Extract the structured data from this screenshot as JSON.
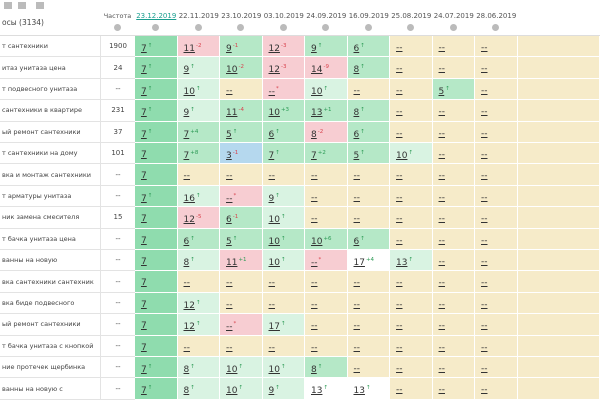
{
  "header": {
    "query_title": "осы (3134)",
    "freq_title": "Частота",
    "dates": [
      "23.12.2019",
      "22.11.2019",
      "23.10.2019",
      "03.10.2019",
      "24.09.2019",
      "16.09.2019",
      "25.08.2019",
      "24.07.2019",
      "28.06.2019"
    ]
  },
  "rows": [
    {
      "query": "т сантехники",
      "freq": 1900,
      "cells": [
        {
          "pos": 7,
          "delta": "↑",
          "tone": "d"
        },
        {
          "pos": 11,
          "delta": "-2",
          "tone": "p"
        },
        {
          "pos": 9,
          "delta": "-1",
          "tone": "g"
        },
        {
          "pos": 12,
          "delta": "-3",
          "tone": "p"
        },
        {
          "pos": 9,
          "delta": "↑",
          "tone": "g"
        },
        {
          "pos": 6,
          "delta": "↑",
          "tone": "g"
        },
        {
          "pos": "--",
          "tone": "e"
        },
        {
          "pos": "--",
          "tone": "e"
        },
        {
          "pos": "--",
          "tone": "e"
        }
      ]
    },
    {
      "query": "итаз унитаза цена",
      "freq": 24,
      "cells": [
        {
          "pos": 7,
          "delta": "↑",
          "tone": "d"
        },
        {
          "pos": 9,
          "delta": "↑",
          "tone": "l"
        },
        {
          "pos": 10,
          "delta": "-2",
          "tone": "g"
        },
        {
          "pos": 12,
          "delta": "-3",
          "tone": "p"
        },
        {
          "pos": 14,
          "delta": "-9",
          "tone": "p"
        },
        {
          "pos": 8,
          "delta": "↑",
          "tone": "g"
        },
        {
          "pos": "--",
          "tone": "e"
        },
        {
          "pos": "--",
          "tone": "e"
        },
        {
          "pos": "--",
          "tone": "e"
        }
      ]
    },
    {
      "query": "т подвесного унитаза",
      "freq": "--",
      "cells": [
        {
          "pos": 7,
          "delta": "↑",
          "tone": "d"
        },
        {
          "pos": 10,
          "delta": "↑",
          "tone": "l"
        },
        {
          "pos": "--",
          "tone": "e"
        },
        {
          "pos": "--",
          "delta": "*",
          "tone": "p"
        },
        {
          "pos": 10,
          "delta": "↑",
          "tone": "l"
        },
        {
          "pos": "--",
          "tone": "e"
        },
        {
          "pos": "--",
          "tone": "e"
        },
        {
          "pos": 5,
          "delta": "↑",
          "tone": "g"
        },
        {
          "pos": "--",
          "tone": "e"
        }
      ]
    },
    {
      "query": "сантехники в квартире",
      "freq": 231,
      "cells": [
        {
          "pos": 7,
          "delta": "↑",
          "tone": "d"
        },
        {
          "pos": 9,
          "delta": "↑",
          "tone": "l"
        },
        {
          "pos": 11,
          "delta": "-4",
          "tone": "g"
        },
        {
          "pos": 10,
          "delta": "+3",
          "tone": "g"
        },
        {
          "pos": 13,
          "delta": "+1",
          "tone": "g"
        },
        {
          "pos": 8,
          "delta": "↑",
          "tone": "g"
        },
        {
          "pos": "--",
          "tone": "e"
        },
        {
          "pos": "--",
          "tone": "e"
        },
        {
          "pos": "--",
          "tone": "e"
        }
      ]
    },
    {
      "query": "ый ремонт сантехники",
      "freq": 37,
      "cells": [
        {
          "pos": 7,
          "delta": "↑",
          "tone": "d"
        },
        {
          "pos": 7,
          "delta": "+4",
          "tone": "g"
        },
        {
          "pos": 5,
          "delta": "↑",
          "tone": "g"
        },
        {
          "pos": 6,
          "delta": "↑",
          "tone": "g"
        },
        {
          "pos": 8,
          "delta": "-2",
          "tone": "p"
        },
        {
          "pos": 6,
          "delta": "↑",
          "tone": "g"
        },
        {
          "pos": "--",
          "tone": "e"
        },
        {
          "pos": "--",
          "tone": "e"
        },
        {
          "pos": "--",
          "tone": "e"
        }
      ]
    },
    {
      "query": "т сантехники на дому",
      "freq": 101,
      "cells": [
        {
          "pos": 7,
          "tone": "d"
        },
        {
          "pos": 7,
          "delta": "+8",
          "tone": "g"
        },
        {
          "pos": 3,
          "delta": "-1",
          "tone": "b"
        },
        {
          "pos": 7,
          "delta": "↑",
          "tone": "g"
        },
        {
          "pos": 7,
          "delta": "+2",
          "tone": "g"
        },
        {
          "pos": 5,
          "delta": "↑",
          "tone": "g"
        },
        {
          "pos": 10,
          "delta": "↑",
          "tone": "l"
        },
        {
          "pos": "--",
          "tone": "e"
        },
        {
          "pos": "--",
          "tone": "e"
        }
      ]
    },
    {
      "query": "вка и монтаж сантехники",
      "freq": "--",
      "cells": [
        {
          "pos": 7,
          "tone": "d"
        },
        {
          "pos": "--",
          "tone": "e"
        },
        {
          "pos": "--",
          "tone": "e"
        },
        {
          "pos": "--",
          "tone": "e"
        },
        {
          "pos": "--",
          "tone": "e"
        },
        {
          "pos": "--",
          "tone": "e"
        },
        {
          "pos": "--",
          "tone": "e"
        },
        {
          "pos": "--",
          "tone": "e"
        },
        {
          "pos": "--",
          "tone": "e"
        }
      ]
    },
    {
      "query": "т арматуры унитаза",
      "freq": "--",
      "cells": [
        {
          "pos": 7,
          "delta": "↑",
          "tone": "d"
        },
        {
          "pos": 16,
          "delta": "↑",
          "tone": "l"
        },
        {
          "pos": "--",
          "delta": "*",
          "tone": "p"
        },
        {
          "pos": 9,
          "delta": "↑",
          "tone": "l"
        },
        {
          "pos": "--",
          "tone": "e"
        },
        {
          "pos": "--",
          "tone": "e"
        },
        {
          "pos": "--",
          "tone": "e"
        },
        {
          "pos": "--",
          "tone": "e"
        },
        {
          "pos": "--",
          "tone": "e"
        }
      ]
    },
    {
      "query": "ник замена смесителя",
      "freq": 15,
      "cells": [
        {
          "pos": 7,
          "tone": "d"
        },
        {
          "pos": 12,
          "delta": "-5",
          "tone": "p"
        },
        {
          "pos": 6,
          "delta": "-1",
          "tone": "g"
        },
        {
          "pos": 10,
          "delta": "↑",
          "tone": "l"
        },
        {
          "pos": "--",
          "tone": "e"
        },
        {
          "pos": "--",
          "tone": "e"
        },
        {
          "pos": "--",
          "tone": "e"
        },
        {
          "pos": "--",
          "tone": "e"
        },
        {
          "pos": "--",
          "tone": "e"
        }
      ]
    },
    {
      "query": "т бачка унитаза цена",
      "freq": "--",
      "cells": [
        {
          "pos": 7,
          "tone": "d"
        },
        {
          "pos": 6,
          "delta": "↑",
          "tone": "g"
        },
        {
          "pos": 5,
          "delta": "↑",
          "tone": "g"
        },
        {
          "pos": 10,
          "delta": "↑",
          "tone": "g"
        },
        {
          "pos": 10,
          "delta": "+6",
          "tone": "g"
        },
        {
          "pos": 6,
          "delta": "↑",
          "tone": "g"
        },
        {
          "pos": "--",
          "tone": "e"
        },
        {
          "pos": "--",
          "tone": "e"
        },
        {
          "pos": "--",
          "tone": "e"
        }
      ]
    },
    {
      "query": "ванны на новую",
      "freq": "--",
      "cells": [
        {
          "pos": 7,
          "tone": "d"
        },
        {
          "pos": 8,
          "delta": "↑",
          "tone": "l"
        },
        {
          "pos": 11,
          "delta": "+1",
          "tone": "p"
        },
        {
          "pos": 10,
          "delta": "↑",
          "tone": "l"
        },
        {
          "pos": "--",
          "delta": "*",
          "tone": "p"
        },
        {
          "pos": 17,
          "delta": "+4",
          "tone": "w"
        },
        {
          "pos": 13,
          "delta": "↑",
          "tone": "l"
        },
        {
          "pos": "--",
          "tone": "e"
        },
        {
          "pos": "--",
          "tone": "e"
        }
      ]
    },
    {
      "query": "вка сантехники сантехник",
      "freq": "--",
      "cells": [
        {
          "pos": 7,
          "tone": "d"
        },
        {
          "pos": "--",
          "tone": "e"
        },
        {
          "pos": "--",
          "tone": "e"
        },
        {
          "pos": "--",
          "tone": "e"
        },
        {
          "pos": "--",
          "tone": "e"
        },
        {
          "pos": "--",
          "tone": "e"
        },
        {
          "pos": "--",
          "tone": "e"
        },
        {
          "pos": "--",
          "tone": "e"
        },
        {
          "pos": "--",
          "tone": "e"
        }
      ]
    },
    {
      "query": "вка биде подвесного",
      "freq": "--",
      "cells": [
        {
          "pos": 7,
          "tone": "d"
        },
        {
          "pos": 12,
          "delta": "↑",
          "tone": "l"
        },
        {
          "pos": "--",
          "tone": "e"
        },
        {
          "pos": "--",
          "tone": "e"
        },
        {
          "pos": "--",
          "tone": "e"
        },
        {
          "pos": "--",
          "tone": "e"
        },
        {
          "pos": "--",
          "tone": "e"
        },
        {
          "pos": "--",
          "tone": "e"
        },
        {
          "pos": "--",
          "tone": "e"
        }
      ]
    },
    {
      "query": "ый ремонт сантехники",
      "freq": "--",
      "cells": [
        {
          "pos": 7,
          "tone": "d"
        },
        {
          "pos": 12,
          "delta": "↑",
          "tone": "l"
        },
        {
          "pos": "--",
          "delta": "*",
          "tone": "p"
        },
        {
          "pos": 17,
          "delta": "↑",
          "tone": "l"
        },
        {
          "pos": "--",
          "tone": "e"
        },
        {
          "pos": "--",
          "tone": "e"
        },
        {
          "pos": "--",
          "tone": "e"
        },
        {
          "pos": "--",
          "tone": "e"
        },
        {
          "pos": "--",
          "tone": "e"
        }
      ]
    },
    {
      "query": "т бачка унитаза с кнопкой",
      "freq": "--",
      "cells": [
        {
          "pos": 7,
          "tone": "d"
        },
        {
          "pos": "--",
          "tone": "e"
        },
        {
          "pos": "--",
          "tone": "e"
        },
        {
          "pos": "--",
          "tone": "e"
        },
        {
          "pos": "--",
          "tone": "e"
        },
        {
          "pos": "--",
          "tone": "e"
        },
        {
          "pos": "--",
          "tone": "e"
        },
        {
          "pos": "--",
          "tone": "e"
        },
        {
          "pos": "--",
          "tone": "e"
        }
      ]
    },
    {
      "query": "ние протечек щербинка",
      "freq": "--",
      "cells": [
        {
          "pos": 7,
          "delta": "↑",
          "tone": "d"
        },
        {
          "pos": 8,
          "delta": "↑",
          "tone": "l"
        },
        {
          "pos": 10,
          "delta": "↑",
          "tone": "l"
        },
        {
          "pos": 10,
          "delta": "↑",
          "tone": "l"
        },
        {
          "pos": 8,
          "delta": "↑",
          "tone": "g"
        },
        {
          "pos": "--",
          "tone": "e"
        },
        {
          "pos": "--",
          "tone": "e"
        },
        {
          "pos": "--",
          "tone": "e"
        },
        {
          "pos": "--",
          "tone": "e"
        }
      ]
    },
    {
      "query": "ванны на новую с",
      "freq": "--",
      "cells": [
        {
          "pos": 7,
          "delta": "↑",
          "tone": "d"
        },
        {
          "pos": 8,
          "delta": "↑",
          "tone": "l"
        },
        {
          "pos": 10,
          "delta": "↑",
          "tone": "l"
        },
        {
          "pos": 9,
          "delta": "↑",
          "tone": "l"
        },
        {
          "pos": 13,
          "delta": "↑",
          "tone": "w"
        },
        {
          "pos": 13,
          "delta": "↑",
          "tone": "w"
        },
        {
          "pos": "--",
          "tone": "e"
        },
        {
          "pos": "--",
          "tone": "e"
        },
        {
          "pos": "--",
          "tone": "e"
        }
      ]
    }
  ]
}
